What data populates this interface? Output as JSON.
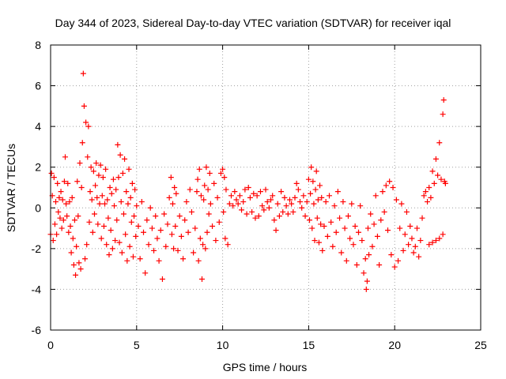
{
  "chart_data": {
    "type": "scatter",
    "title": "Day 344 of 2023, Sidereal Day-to-day VTEC variation (SDTVAR) for receiver iqal",
    "xlabel": "GPS time / hours",
    "ylabel": "SDTVAR / TECUs",
    "xlim": [
      0,
      25
    ],
    "ylim": [
      -6,
      8
    ],
    "x_ticks": [
      0,
      5,
      10,
      15,
      20,
      25
    ],
    "x_tick_labels": [
      "0",
      "5",
      "10",
      "15",
      "20",
      "25"
    ],
    "y_ticks": [
      -6,
      -4,
      -2,
      0,
      2,
      4,
      6,
      8
    ],
    "y_tick_labels": [
      "-6",
      "-4",
      "-2",
      "0",
      "2",
      "4",
      "6",
      "8"
    ],
    "grid": true,
    "marker": "+",
    "marker_color": "#ff0000",
    "series": [
      {
        "name": "SDTVAR",
        "points": [
          [
            0.0,
            -1.3
          ],
          [
            0.05,
            1.7
          ],
          [
            0.1,
            0.6
          ],
          [
            0.15,
            -1.6
          ],
          [
            0.2,
            1.5
          ],
          [
            0.25,
            -0.8
          ],
          [
            0.3,
            0.3
          ],
          [
            0.35,
            -1.3
          ],
          [
            0.4,
            1.2
          ],
          [
            0.45,
            -0.2
          ],
          [
            0.5,
            0.5
          ],
          [
            0.55,
            -0.5
          ],
          [
            0.6,
            0.8
          ],
          [
            0.65,
            -1.0
          ],
          [
            0.7,
            0.4
          ],
          [
            0.75,
            -0.6
          ],
          [
            0.8,
            1.3
          ],
          [
            0.85,
            2.5
          ],
          [
            0.9,
            0.2
          ],
          [
            0.95,
            -0.4
          ],
          [
            1.0,
            1.2
          ],
          [
            1.05,
            -1.2
          ],
          [
            1.1,
            0.3
          ],
          [
            1.15,
            -0.9
          ],
          [
            1.2,
            -2.2
          ],
          [
            1.25,
            0.5
          ],
          [
            1.3,
            -1.5
          ],
          [
            1.35,
            -2.8
          ],
          [
            1.4,
            -0.6
          ],
          [
            1.45,
            -3.3
          ],
          [
            1.5,
            -1.9
          ],
          [
            1.55,
            1.3
          ],
          [
            1.6,
            -0.4
          ],
          [
            1.65,
            -2.7
          ],
          [
            1.7,
            2.2
          ],
          [
            1.75,
            -3.0
          ],
          [
            1.8,
            1.0
          ],
          [
            1.85,
            3.2
          ],
          [
            1.9,
            6.6
          ],
          [
            1.95,
            5.0
          ],
          [
            2.0,
            -2.5
          ],
          [
            2.05,
            4.2
          ],
          [
            2.1,
            -1.8
          ],
          [
            2.15,
            2.5
          ],
          [
            2.2,
            4.0
          ],
          [
            2.25,
            -0.7
          ],
          [
            2.3,
            0.8
          ],
          [
            2.35,
            2.0
          ],
          [
            2.4,
            0.4
          ],
          [
            2.45,
            -1.2
          ],
          [
            2.5,
            1.8
          ],
          [
            2.55,
            -0.3
          ],
          [
            2.6,
            1.1
          ],
          [
            2.65,
            2.2
          ],
          [
            2.7,
            0.5
          ],
          [
            2.75,
            -0.8
          ],
          [
            2.8,
            1.6
          ],
          [
            2.85,
            0.2
          ],
          [
            2.9,
            2.1
          ],
          [
            2.95,
            -1.5
          ],
          [
            3.0,
            0.6
          ],
          [
            3.05,
            1.5
          ],
          [
            3.1,
            -0.9
          ],
          [
            3.15,
            0.2
          ],
          [
            3.2,
            1.9
          ],
          [
            3.25,
            -1.8
          ],
          [
            3.3,
            0.4
          ],
          [
            3.35,
            -0.5
          ],
          [
            3.4,
            -2.3
          ],
          [
            3.45,
            1.0
          ],
          [
            3.5,
            -1.1
          ],
          [
            3.55,
            0.7
          ],
          [
            3.6,
            -2.0
          ],
          [
            3.65,
            1.4
          ],
          [
            3.7,
            0.1
          ],
          [
            3.75,
            -1.6
          ],
          [
            3.8,
            0.9
          ],
          [
            3.85,
            -0.6
          ],
          [
            3.9,
            3.1
          ],
          [
            3.95,
            1.5
          ],
          [
            4.0,
            -1.7
          ],
          [
            4.05,
            2.6
          ],
          [
            4.1,
            0.3
          ],
          [
            4.15,
            -2.2
          ],
          [
            4.2,
            1.7
          ],
          [
            4.25,
            -0.3
          ],
          [
            4.3,
            2.4
          ],
          [
            4.35,
            -1.3
          ],
          [
            4.4,
            0.8
          ],
          [
            4.45,
            -2.6
          ],
          [
            4.5,
            0.2
          ],
          [
            4.55,
            1.9
          ],
          [
            4.6,
            -1.9
          ],
          [
            4.65,
            0.5
          ],
          [
            4.7,
            -0.7
          ],
          [
            4.75,
            1.2
          ],
          [
            4.8,
            -2.4
          ],
          [
            4.85,
            -0.4
          ],
          [
            4.9,
            0.9
          ],
          [
            4.95,
            -1.4
          ],
          [
            5.0,
            0.1
          ],
          [
            5.1,
            -0.9
          ],
          [
            5.2,
            -2.5
          ],
          [
            5.3,
            0.3
          ],
          [
            5.4,
            -1.2
          ],
          [
            5.5,
            -3.2
          ],
          [
            5.6,
            -0.6
          ],
          [
            5.7,
            -1.8
          ],
          [
            5.8,
            0.0
          ],
          [
            5.9,
            -1.0
          ],
          [
            6.0,
            -2.1
          ],
          [
            6.1,
            -0.4
          ],
          [
            6.2,
            -1.5
          ],
          [
            6.3,
            -2.6
          ],
          [
            6.4,
            -1.1
          ],
          [
            6.5,
            -3.5
          ],
          [
            6.6,
            -0.3
          ],
          [
            6.7,
            -1.9
          ],
          [
            6.8,
            -0.8
          ],
          [
            6.9,
            0.5
          ],
          [
            7.0,
            1.5
          ],
          [
            7.05,
            -1.3
          ],
          [
            7.1,
            0.2
          ],
          [
            7.15,
            -2.0
          ],
          [
            7.2,
            1.0
          ],
          [
            7.25,
            -0.9
          ],
          [
            7.3,
            0.7
          ],
          [
            7.4,
            -2.1
          ],
          [
            7.5,
            -0.4
          ],
          [
            7.6,
            -1.4
          ],
          [
            7.7,
            -2.5
          ],
          [
            7.8,
            -0.6
          ],
          [
            7.9,
            0.3
          ],
          [
            8.0,
            -1.2
          ],
          [
            8.1,
            0.9
          ],
          [
            8.2,
            -0.2
          ],
          [
            8.3,
            -2.2
          ],
          [
            8.4,
            -1.0
          ],
          [
            8.5,
            0.8
          ],
          [
            8.55,
            1.4
          ],
          [
            8.6,
            -2.6
          ],
          [
            8.65,
            1.9
          ],
          [
            8.7,
            -1.5
          ],
          [
            8.75,
            0.6
          ],
          [
            8.8,
            -3.5
          ],
          [
            8.85,
            -1.8
          ],
          [
            8.9,
            0.4
          ],
          [
            8.95,
            1.1
          ],
          [
            9.0,
            -2.0
          ],
          [
            9.05,
            2.0
          ],
          [
            9.1,
            -1.2
          ],
          [
            9.15,
            0.9
          ],
          [
            9.2,
            -0.3
          ],
          [
            9.25,
            1.7
          ],
          [
            9.3,
            0.2
          ],
          [
            9.4,
            -0.9
          ],
          [
            9.5,
            1.2
          ],
          [
            9.6,
            -1.6
          ],
          [
            9.7,
            0.5
          ],
          [
            9.8,
            -0.7
          ],
          [
            9.9,
            1.7
          ],
          [
            10.0,
            1.9
          ],
          [
            10.05,
            -0.2
          ],
          [
            10.1,
            1.5
          ],
          [
            10.15,
            -1.5
          ],
          [
            10.2,
            0.9
          ],
          [
            10.3,
            -1.8
          ],
          [
            10.4,
            0.2
          ],
          [
            10.5,
            0.6
          ],
          [
            10.6,
            0.1
          ],
          [
            10.7,
            0.8
          ],
          [
            10.8,
            0.4
          ],
          [
            10.9,
            0.2
          ],
          [
            11.0,
            0.6
          ],
          [
            11.1,
            -0.1
          ],
          [
            11.2,
            0.3
          ],
          [
            11.3,
            0.9
          ],
          [
            11.4,
            -0.3
          ],
          [
            11.5,
            1.0
          ],
          [
            11.6,
            0.5
          ],
          [
            11.7,
            -0.2
          ],
          [
            11.8,
            0.7
          ],
          [
            11.9,
            -0.5
          ],
          [
            12.0,
            0.6
          ],
          [
            12.1,
            -0.4
          ],
          [
            12.2,
            0.8
          ],
          [
            12.3,
            0.1
          ],
          [
            12.4,
            -0.1
          ],
          [
            12.5,
            0.9
          ],
          [
            12.6,
            0.3
          ],
          [
            12.7,
            0.0
          ],
          [
            12.8,
            0.4
          ],
          [
            12.9,
            0.6
          ],
          [
            13.0,
            -0.6
          ],
          [
            13.1,
            -1.1
          ],
          [
            13.2,
            0.2
          ],
          [
            13.3,
            -0.4
          ],
          [
            13.4,
            0.8
          ],
          [
            13.5,
            -0.2
          ],
          [
            13.6,
            0.5
          ],
          [
            13.7,
            0.1
          ],
          [
            13.8,
            -0.3
          ],
          [
            13.9,
            0.4
          ],
          [
            14.0,
            0.2
          ],
          [
            14.1,
            -0.2
          ],
          [
            14.2,
            0.5
          ],
          [
            14.3,
            1.2
          ],
          [
            14.4,
            0.9
          ],
          [
            14.5,
            0.3
          ],
          [
            14.6,
            0.0
          ],
          [
            14.7,
            0.6
          ],
          [
            14.8,
            -0.4
          ],
          [
            14.9,
            0.3
          ],
          [
            15.0,
            1.4
          ],
          [
            15.05,
            -0.6
          ],
          [
            15.1,
            0.7
          ],
          [
            15.15,
            2.0
          ],
          [
            15.2,
            -1.0
          ],
          [
            15.25,
            1.3
          ],
          [
            15.3,
            0.2
          ],
          [
            15.35,
            -1.6
          ],
          [
            15.4,
            0.9
          ],
          [
            15.45,
            1.8
          ],
          [
            15.5,
            -0.5
          ],
          [
            15.55,
            0.4
          ],
          [
            15.6,
            -1.7
          ],
          [
            15.65,
            1.1
          ],
          [
            15.7,
            -0.8
          ],
          [
            15.75,
            0.5
          ],
          [
            15.8,
            -2.1
          ],
          [
            15.9,
            -0.9
          ],
          [
            16.0,
            0.3
          ],
          [
            16.1,
            -1.4
          ],
          [
            16.2,
            0.6
          ],
          [
            16.3,
            -0.7
          ],
          [
            16.4,
            -1.9
          ],
          [
            16.5,
            0.1
          ],
          [
            16.6,
            -1.2
          ],
          [
            16.7,
            0.8
          ],
          [
            16.8,
            -0.5
          ],
          [
            16.9,
            -2.2
          ],
          [
            17.0,
            0.3
          ],
          [
            17.1,
            -1.0
          ],
          [
            17.2,
            -2.6
          ],
          [
            17.3,
            -0.4
          ],
          [
            17.4,
            -1.5
          ],
          [
            17.5,
            0.2
          ],
          [
            17.6,
            -1.8
          ],
          [
            17.7,
            -0.9
          ],
          [
            17.8,
            -2.8
          ],
          [
            17.9,
            -1.2
          ],
          [
            18.0,
            0.1
          ],
          [
            18.1,
            -1.6
          ],
          [
            18.2,
            -3.2
          ],
          [
            18.3,
            -2.5
          ],
          [
            18.35,
            -4.0
          ],
          [
            18.4,
            -3.6
          ],
          [
            18.45,
            -1.0
          ],
          [
            18.5,
            -2.3
          ],
          [
            18.6,
            -0.3
          ],
          [
            18.7,
            -1.9
          ],
          [
            18.8,
            -0.8
          ],
          [
            18.9,
            0.6
          ],
          [
            19.0,
            -1.4
          ],
          [
            19.1,
            -2.8
          ],
          [
            19.2,
            -0.6
          ],
          [
            19.3,
            0.8
          ],
          [
            19.4,
            -0.2
          ],
          [
            19.5,
            1.1
          ],
          [
            19.6,
            -1.1
          ],
          [
            19.7,
            1.3
          ],
          [
            19.8,
            -2.3
          ],
          [
            19.9,
            1.0
          ],
          [
            20.0,
            -2.9
          ],
          [
            20.1,
            0.4
          ],
          [
            20.2,
            -2.6
          ],
          [
            20.3,
            -1.0
          ],
          [
            20.4,
            0.2
          ],
          [
            20.5,
            -2.1
          ],
          [
            20.6,
            -1.3
          ],
          [
            20.7,
            -0.2
          ],
          [
            20.8,
            -1.8
          ],
          [
            20.9,
            -0.9
          ],
          [
            21.0,
            -1.5
          ],
          [
            21.1,
            -2.2
          ],
          [
            21.2,
            -1.9
          ],
          [
            21.3,
            -1.0
          ],
          [
            21.4,
            -2.4
          ],
          [
            21.5,
            -1.6
          ],
          [
            21.6,
            -0.5
          ],
          [
            21.7,
            0.6
          ],
          [
            21.8,
            0.8
          ],
          [
            21.9,
            0.3
          ],
          [
            22.0,
            1.0
          ],
          [
            22.1,
            0.5
          ],
          [
            22.2,
            1.8
          ],
          [
            22.3,
            1.2
          ],
          [
            22.4,
            2.4
          ],
          [
            22.5,
            1.6
          ],
          [
            22.6,
            3.2
          ],
          [
            22.7,
            1.4
          ],
          [
            22.8,
            4.6
          ],
          [
            22.85,
            5.3
          ],
          [
            22.9,
            1.3
          ],
          [
            22.95,
            1.2
          ],
          [
            22.0,
            -1.8
          ],
          [
            22.2,
            -1.7
          ],
          [
            22.4,
            -1.6
          ],
          [
            22.6,
            -1.5
          ],
          [
            22.8,
            -1.3
          ]
        ]
      }
    ]
  }
}
